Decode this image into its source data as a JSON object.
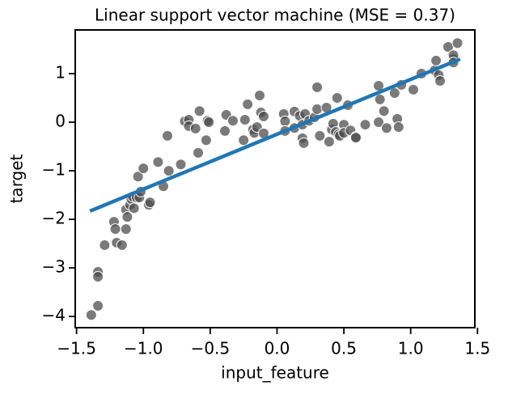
{
  "chart_data": {
    "type": "scatter",
    "title": "Linear support vector machine (MSE = 0.37)",
    "xlabel": "input_feature",
    "ylabel": "target",
    "xlim": [
      -1.51,
      1.48
    ],
    "ylim": [
      -4.23,
      1.9
    ],
    "xticks": [
      {
        "value": -1.5,
        "label": "−1.5"
      },
      {
        "value": -1.0,
        "label": "−1.0"
      },
      {
        "value": -0.5,
        "label": "−0.5"
      },
      {
        "value": 0,
        "label": "0.0"
      },
      0.5,
      {
        "value": 1.0,
        "label": "1.0"
      },
      1.5
    ],
    "yticks": [
      {
        "value": -4,
        "label": "−4"
      },
      {
        "value": -3,
        "label": "−3"
      },
      {
        "value": -2,
        "label": "−2"
      },
      {
        "value": -1,
        "label": "−1"
      },
      0,
      1
    ],
    "color": "#4d4d4d",
    "x": [
      -1.39,
      -1.34,
      -1.34,
      -1.34,
      -1.29,
      -1.22,
      -1.21,
      -1.2,
      -1.16,
      -1.13,
      -1.13,
      -1.12,
      -1.1,
      -1.09,
      -1.08,
      -1.07,
      -1.05,
      -1.04,
      -1.03,
      -1.02,
      -1.0,
      -0.96,
      -0.95,
      -0.89,
      -0.85,
      -0.82,
      -0.81,
      -0.72,
      -0.69,
      -0.66,
      -0.66,
      -0.61,
      -0.59,
      -0.58,
      -0.53,
      -0.52,
      -0.51,
      -0.39,
      -0.38,
      -0.33,
      -0.25,
      -0.24,
      -0.22,
      -0.18,
      -0.17,
      -0.15,
      -0.13,
      -0.12,
      -0.1,
      -0.1,
      0.05,
      0.06,
      0.06,
      0.13,
      0.13,
      0.17,
      0.19,
      0.19,
      0.2,
      0.21,
      0.24,
      0.28,
      0.3,
      0.3,
      0.32,
      0.37,
      0.39,
      0.41,
      0.42,
      0.44,
      0.45,
      0.46,
      0.47,
      0.5,
      0.5,
      0.53,
      0.55,
      0.59,
      0.59,
      0.66,
      0.76,
      0.76,
      0.77,
      0.8,
      0.82,
      0.88,
      0.9,
      0.91,
      0.93,
      1.02,
      1.08,
      1.18,
      1.19,
      1.21,
      1.22,
      1.28,
      1.32,
      1.32,
      1.32,
      1.35
    ],
    "y": [
      -3.97,
      -3.78,
      -3.08,
      -3.18,
      -2.53,
      -2.05,
      -2.2,
      -2.48,
      -2.53,
      -2.2,
      -1.8,
      -1.95,
      -1.7,
      -1.58,
      -1.53,
      -1.77,
      -1.55,
      -1.12,
      -1.55,
      -1.43,
      -0.95,
      -1.7,
      -1.65,
      -0.82,
      -1.32,
      -0.28,
      -1.0,
      -0.87,
      0.02,
      0.05,
      -0.08,
      -0.13,
      -0.63,
      0.23,
      -0.37,
      0.03,
      0.0,
      -0.18,
      0.15,
      0.03,
      -0.37,
      0.05,
      0.37,
      -0.15,
      -0.22,
      -0.1,
      0.55,
      0.2,
      0.12,
      -0.23,
      0.17,
      0.02,
      -0.18,
      0.22,
      -0.12,
      0.13,
      -0.05,
      -0.33,
      -0.43,
      0.17,
      0.03,
      0.1,
      0.27,
      0.72,
      -0.28,
      0.3,
      -0.4,
      -0.15,
      -0.03,
      -0.2,
      0.5,
      -0.25,
      -0.28,
      -0.05,
      -0.22,
      0.35,
      -0.17,
      -0.3,
      -0.32,
      -0.05,
      0.0,
      0.75,
      0.47,
      0.23,
      -0.12,
      0.6,
      0.07,
      -0.1,
      0.77,
      0.67,
      1.0,
      1.07,
      1.27,
      0.97,
      0.85,
      1.55,
      1.3,
      1.38,
      1.23,
      1.63
    ],
    "line": {
      "x": [
        -1.4,
        1.37
      ],
      "y": [
        -1.83,
        1.3
      ],
      "color": "#1f77b4"
    }
  }
}
